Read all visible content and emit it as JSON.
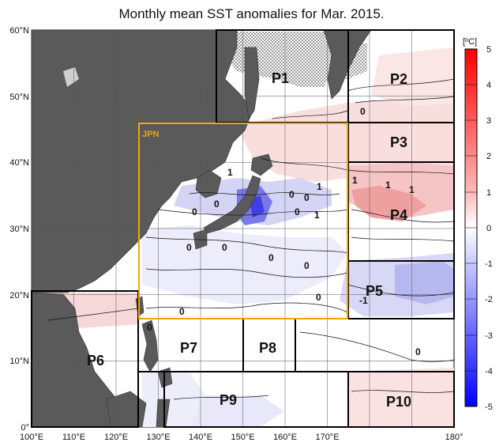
{
  "title": "Monthly mean SST anomalies for Mar. 2015.",
  "colorbar": {
    "unit": "[ºC]",
    "ticks": [
      "5",
      "4",
      "3",
      "2",
      "1",
      "0",
      "-1",
      "-2",
      "-3",
      "-4",
      "-5"
    ],
    "range": [
      -5,
      5
    ]
  },
  "axes": {
    "lat_labels": [
      "60°N",
      "50°N",
      "40°N",
      "30°N",
      "20°N",
      "10°N",
      "0°"
    ],
    "lon_labels": [
      "100°E",
      "110°E",
      "120°E",
      "130°E",
      "140°E",
      "150°E",
      "160°E",
      "170°E",
      "180°"
    ]
  },
  "regions": [
    {
      "id": "P1",
      "label": "P1"
    },
    {
      "id": "P2",
      "label": "P2"
    },
    {
      "id": "P3",
      "label": "P3"
    },
    {
      "id": "P4",
      "label": "P4"
    },
    {
      "id": "P5",
      "label": "P5"
    },
    {
      "id": "P6",
      "label": "P6"
    },
    {
      "id": "P7",
      "label": "P7"
    },
    {
      "id": "P8",
      "label": "P8"
    },
    {
      "id": "P9",
      "label": "P9"
    },
    {
      "id": "P10",
      "label": "P10"
    }
  ],
  "jpn_label": "JPN",
  "contour_labels": [
    "0",
    "0",
    "1",
    "0",
    "1",
    "1",
    "1",
    "1",
    "0",
    "0",
    "0",
    "1",
    "0",
    "0",
    "0",
    "0",
    "0",
    "0",
    "-1",
    "0",
    "0"
  ],
  "colors": {
    "land": "#5a5a5a",
    "ice": "#f2f2f2",
    "jpn_box": "#f0a800",
    "warm": "#f6c0c0",
    "cool": "#c8c8f0",
    "colorbar_top": "#ff0000",
    "colorbar_bottom": "#0000ff"
  }
}
